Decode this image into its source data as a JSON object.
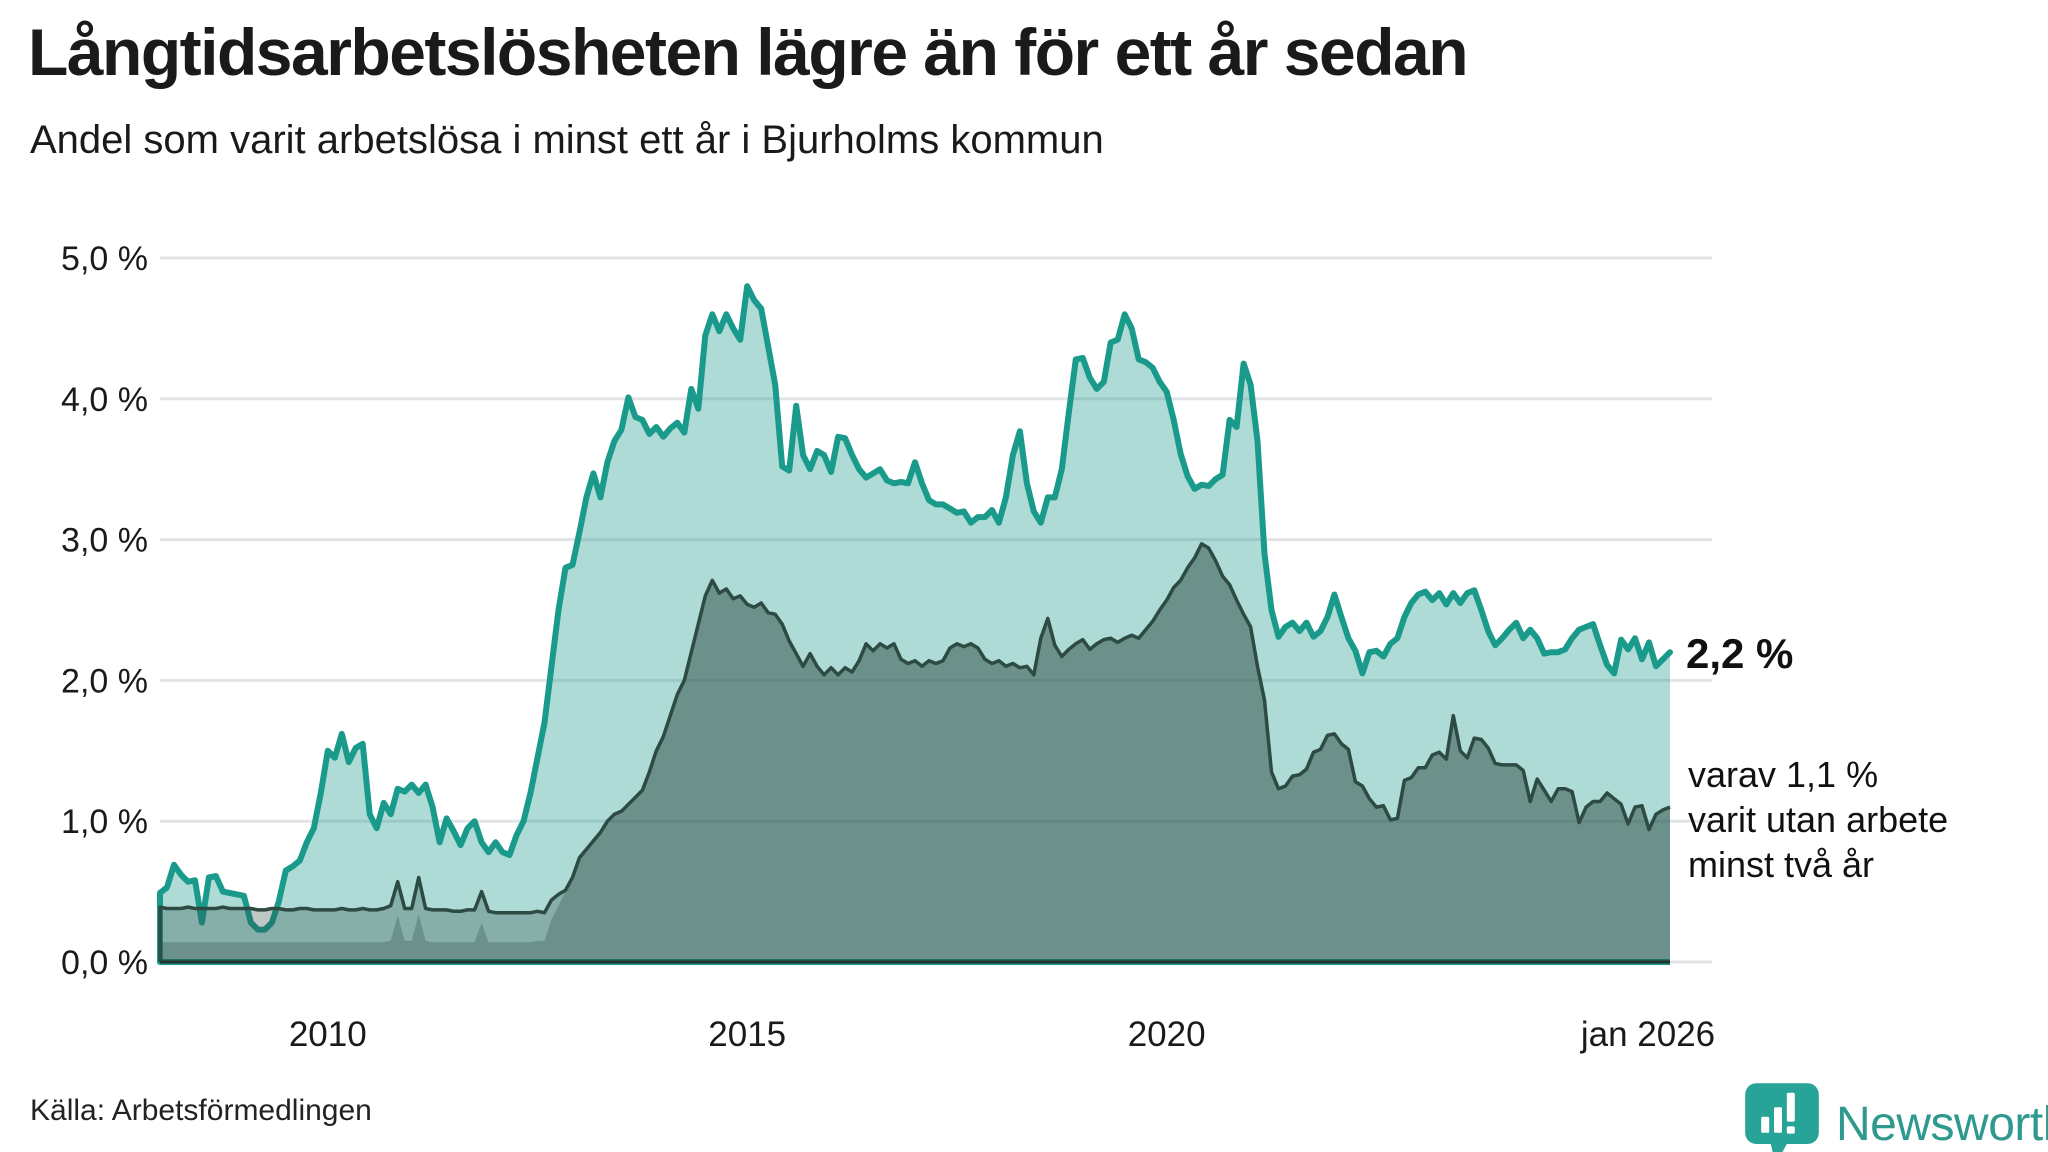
{
  "header": {
    "title": "Långtidsarbetslösheten lägre än för ett år sedan",
    "subtitle": "Andel som varit arbetslösa i minst ett år i Bjurholms kommun"
  },
  "annotations": {
    "latest_total": "2,2 %",
    "secondary_lines": [
      "varav 1,1 %",
      "varit utan arbete",
      "minst två år"
    ]
  },
  "footer": {
    "source": "Källa: Arbetsförmedlingen",
    "logo_text": "Newsworthy"
  },
  "colors": {
    "teal_line": "#199a8b",
    "teal_fill_rgba": "rgba(24,152,138,0.35)",
    "dark_line": "#2d4a43",
    "dark_fill_rgba": "rgba(45,74,67,0.30)",
    "gridline": "#e2e5e7",
    "axis_line": "#24352f",
    "text": "#1a1a1a",
    "logo_teal": "#2f998e",
    "logo_icon": "#27a397"
  },
  "chart_data": {
    "type": "area",
    "unit": "%",
    "start_year": 2008,
    "end_year": 2026,
    "points_per_year": 12,
    "ylim": [
      0,
      5
    ],
    "grid": "horizontal",
    "y_ticks": [
      {
        "label": "5,0 %",
        "value": 5
      },
      {
        "label": "4,0 %",
        "value": 4
      },
      {
        "label": "3,0 %",
        "value": 3
      },
      {
        "label": "2,0 %",
        "value": 2
      },
      {
        "label": "1,0 %",
        "value": 1
      },
      {
        "label": "0,0 %",
        "value": 0
      }
    ],
    "x_ticks": [
      {
        "label": "2010",
        "year": 2010,
        "dx": 0
      },
      {
        "label": "2015",
        "year": 2015,
        "dx": 0
      },
      {
        "label": "2020",
        "year": 2020,
        "dx": 0
      },
      {
        "label": "jan 2026",
        "year": 2026,
        "dx": -22
      }
    ],
    "series": [
      {
        "name": "arbetslosa-minst-ett-ar",
        "last_value": 2.2,
        "values": [
          0.49,
          0.53,
          0.69,
          0.62,
          0.57,
          0.58,
          0.28,
          0.6,
          0.61,
          0.5,
          0.49,
          0.48,
          0.47,
          0.28,
          0.23,
          0.23,
          0.28,
          0.43,
          0.65,
          0.68,
          0.72,
          0.85,
          0.95,
          1.2,
          1.5,
          1.45,
          1.62,
          1.42,
          1.52,
          1.55,
          1.05,
          0.95,
          1.13,
          1.05,
          1.23,
          1.21,
          1.26,
          1.2,
          1.26,
          1.1,
          0.85,
          1.02,
          0.93,
          0.83,
          0.95,
          1.0,
          0.85,
          0.78,
          0.85,
          0.78,
          0.76,
          0.9,
          1.0,
          1.2,
          1.45,
          1.7,
          2.1,
          2.5,
          2.8,
          2.82,
          3.05,
          3.3,
          3.47,
          3.3,
          3.55,
          3.7,
          3.78,
          4.01,
          3.87,
          3.85,
          3.75,
          3.8,
          3.73,
          3.79,
          3.83,
          3.76,
          4.07,
          3.93,
          4.45,
          4.6,
          4.48,
          4.6,
          4.5,
          4.42,
          4.8,
          4.7,
          4.64,
          4.37,
          4.1,
          3.52,
          3.49,
          3.95,
          3.6,
          3.5,
          3.63,
          3.6,
          3.48,
          3.73,
          3.72,
          3.6,
          3.5,
          3.44,
          3.47,
          3.5,
          3.42,
          3.4,
          3.41,
          3.4,
          3.55,
          3.4,
          3.28,
          3.25,
          3.25,
          3.22,
          3.19,
          3.2,
          3.12,
          3.16,
          3.16,
          3.21,
          3.12,
          3.3,
          3.6,
          3.77,
          3.4,
          3.2,
          3.12,
          3.3,
          3.3,
          3.5,
          3.9,
          4.28,
          4.29,
          4.15,
          4.07,
          4.12,
          4.4,
          4.42,
          4.6,
          4.5,
          4.28,
          4.26,
          4.22,
          4.12,
          4.05,
          3.85,
          3.61,
          3.45,
          3.36,
          3.39,
          3.38,
          3.43,
          3.46,
          3.85,
          3.8,
          4.25,
          4.1,
          3.7,
          2.9,
          2.5,
          2.31,
          2.38,
          2.41,
          2.35,
          2.41,
          2.31,
          2.35,
          2.45,
          2.61,
          2.45,
          2.3,
          2.21,
          2.05,
          2.2,
          2.21,
          2.17,
          2.26,
          2.3,
          2.45,
          2.55,
          2.61,
          2.63,
          2.57,
          2.62,
          2.54,
          2.62,
          2.55,
          2.62,
          2.64,
          2.5,
          2.35,
          2.25,
          2.3,
          2.36,
          2.41,
          2.3,
          2.36,
          2.3,
          2.19,
          2.2,
          2.2,
          2.22,
          2.3,
          2.36,
          2.38,
          2.4,
          2.25,
          2.11,
          2.05,
          2.29,
          2.22,
          2.3,
          2.15,
          2.27,
          2.1,
          2.15,
          2.2
        ]
      },
      {
        "name": "arbetslosa-minst-tva-ar",
        "last_value": 1.1,
        "values": [
          0.39,
          0.38,
          0.38,
          0.38,
          0.39,
          0.38,
          0.38,
          0.38,
          0.38,
          0.39,
          0.38,
          0.38,
          0.38,
          0.38,
          0.37,
          0.37,
          0.38,
          0.38,
          0.37,
          0.37,
          0.38,
          0.38,
          0.37,
          0.37,
          0.37,
          0.37,
          0.38,
          0.37,
          0.37,
          0.38,
          0.37,
          0.37,
          0.38,
          0.4,
          0.57,
          0.38,
          0.38,
          0.6,
          0.38,
          0.37,
          0.37,
          0.37,
          0.36,
          0.36,
          0.37,
          0.37,
          0.5,
          0.36,
          0.35,
          0.35,
          0.35,
          0.35,
          0.35,
          0.35,
          0.36,
          0.35,
          0.44,
          0.48,
          0.51,
          0.6,
          0.74,
          0.8,
          0.86,
          0.92,
          1.0,
          1.05,
          1.07,
          1.12,
          1.17,
          1.22,
          1.35,
          1.5,
          1.6,
          1.75,
          1.9,
          2.0,
          2.2,
          2.4,
          2.6,
          2.71,
          2.62,
          2.65,
          2.58,
          2.6,
          2.54,
          2.52,
          2.55,
          2.48,
          2.47,
          2.4,
          2.28,
          2.19,
          2.1,
          2.19,
          2.1,
          2.04,
          2.09,
          2.04,
          2.09,
          2.06,
          2.14,
          2.26,
          2.21,
          2.26,
          2.23,
          2.26,
          2.15,
          2.12,
          2.14,
          2.1,
          2.14,
          2.12,
          2.14,
          2.23,
          2.26,
          2.24,
          2.26,
          2.23,
          2.15,
          2.12,
          2.14,
          2.1,
          2.12,
          2.09,
          2.1,
          2.04,
          2.3,
          2.44,
          2.25,
          2.17,
          2.22,
          2.26,
          2.29,
          2.22,
          2.26,
          2.29,
          2.3,
          2.27,
          2.3,
          2.32,
          2.3,
          2.36,
          2.42,
          2.5,
          2.57,
          2.66,
          2.71,
          2.8,
          2.87,
          2.97,
          2.94,
          2.85,
          2.74,
          2.68,
          2.57,
          2.47,
          2.38,
          2.1,
          1.86,
          1.35,
          1.23,
          1.25,
          1.32,
          1.33,
          1.37,
          1.49,
          1.51,
          1.61,
          1.62,
          1.55,
          1.51,
          1.28,
          1.25,
          1.16,
          1.1,
          1.11,
          1.01,
          1.02,
          1.29,
          1.31,
          1.38,
          1.38,
          1.47,
          1.49,
          1.44,
          1.75,
          1.5,
          1.45,
          1.59,
          1.58,
          1.52,
          1.41,
          1.4,
          1.4,
          1.4,
          1.36,
          1.14,
          1.3,
          1.22,
          1.14,
          1.23,
          1.23,
          1.21,
          0.99,
          1.1,
          1.14,
          1.14,
          1.2,
          1.16,
          1.12,
          0.98,
          1.1,
          1.11,
          0.94,
          1.05,
          1.08,
          1.1
        ]
      },
      {
        "name": "overlay-shade-band",
        "note": "unlabeled darker band at base; follows series 2 from 2013 onward",
        "values_2008_2012": [
          0.14,
          0.14,
          0.14,
          0.14,
          0.14,
          0.14,
          0.14,
          0.14,
          0.14,
          0.14,
          0.14,
          0.14,
          0.14,
          0.14,
          0.14,
          0.14,
          0.14,
          0.14,
          0.14,
          0.14,
          0.14,
          0.14,
          0.14,
          0.14,
          0.14,
          0.14,
          0.14,
          0.14,
          0.14,
          0.14,
          0.14,
          0.14,
          0.14,
          0.15,
          0.33,
          0.15,
          0.15,
          0.34,
          0.15,
          0.14,
          0.14,
          0.14,
          0.14,
          0.14,
          0.14,
          0.14,
          0.28,
          0.14,
          0.14,
          0.14,
          0.14,
          0.14,
          0.14,
          0.14,
          0.15,
          0.15,
          0.3,
          0.4,
          0.5,
          0.6
        ]
      }
    ]
  }
}
